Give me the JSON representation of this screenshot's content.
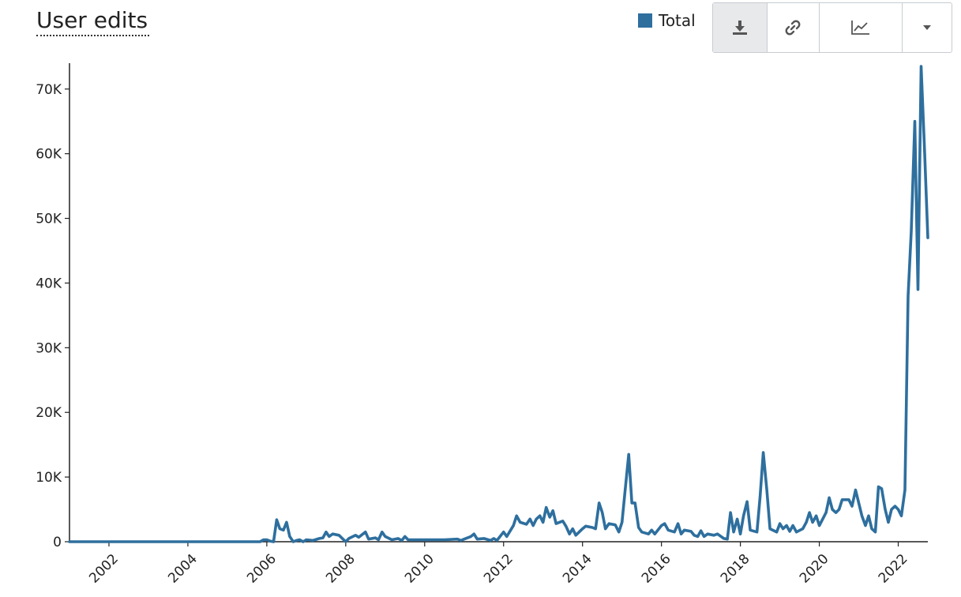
{
  "title": "User edits",
  "legend": {
    "label": "Total",
    "color": "#2e6f9e"
  },
  "toolbar": {
    "buttons": [
      {
        "name": "download",
        "icon": "download-icon"
      },
      {
        "name": "link",
        "icon": "link-icon"
      },
      {
        "name": "chart-type",
        "icon": "line-chart-icon"
      },
      {
        "name": "menu",
        "icon": "caret-down-icon"
      }
    ]
  },
  "chart_data": {
    "type": "line",
    "title": "User edits",
    "xlabel": "",
    "ylabel": "",
    "xlim": [
      2001.0,
      2022.75
    ],
    "ylim": [
      0,
      74000
    ],
    "grid": false,
    "legend_position": "top-right",
    "x_ticks": [
      "2002",
      "2004",
      "2006",
      "2008",
      "2010",
      "2012",
      "2014",
      "2016",
      "2018",
      "2020",
      "2022"
    ],
    "y_ticks": [
      "0",
      "10K",
      "20K",
      "30K",
      "40K",
      "50K",
      "60K",
      "70K"
    ],
    "series": [
      {
        "name": "Total",
        "color": "#2e6f9e",
        "points": [
          [
            2001.0,
            0
          ],
          [
            2005.83,
            0
          ],
          [
            2005.92,
            300
          ],
          [
            2006.0,
            300
          ],
          [
            2006.08,
            100
          ],
          [
            2006.17,
            0
          ],
          [
            2006.25,
            3400
          ],
          [
            2006.33,
            2000
          ],
          [
            2006.42,
            1800
          ],
          [
            2006.5,
            3000
          ],
          [
            2006.58,
            800
          ],
          [
            2006.67,
            0
          ],
          [
            2006.75,
            200
          ],
          [
            2006.83,
            300
          ],
          [
            2006.92,
            0
          ],
          [
            2007.0,
            300
          ],
          [
            2007.17,
            200
          ],
          [
            2007.33,
            500
          ],
          [
            2007.42,
            600
          ],
          [
            2007.5,
            1500
          ],
          [
            2007.58,
            800
          ],
          [
            2007.67,
            1200
          ],
          [
            2007.83,
            1000
          ],
          [
            2008.0,
            0
          ],
          [
            2008.08,
            500
          ],
          [
            2008.25,
            1000
          ],
          [
            2008.33,
            700
          ],
          [
            2008.5,
            1500
          ],
          [
            2008.58,
            400
          ],
          [
            2008.75,
            600
          ],
          [
            2008.83,
            300
          ],
          [
            2008.92,
            1500
          ],
          [
            2009.0,
            800
          ],
          [
            2009.17,
            300
          ],
          [
            2009.33,
            500
          ],
          [
            2009.42,
            200
          ],
          [
            2009.5,
            800
          ],
          [
            2009.58,
            300
          ],
          [
            2010.0,
            300
          ],
          [
            2010.5,
            300
          ],
          [
            2010.83,
            400
          ],
          [
            2010.92,
            200
          ],
          [
            2011.0,
            400
          ],
          [
            2011.17,
            800
          ],
          [
            2011.25,
            1200
          ],
          [
            2011.33,
            400
          ],
          [
            2011.5,
            500
          ],
          [
            2011.67,
            200
          ],
          [
            2011.75,
            500
          ],
          [
            2011.83,
            200
          ],
          [
            2012.0,
            1500
          ],
          [
            2012.08,
            800
          ],
          [
            2012.25,
            2500
          ],
          [
            2012.33,
            4000
          ],
          [
            2012.42,
            3000
          ],
          [
            2012.58,
            2700
          ],
          [
            2012.67,
            3500
          ],
          [
            2012.75,
            2500
          ],
          [
            2012.83,
            3500
          ],
          [
            2012.92,
            4000
          ],
          [
            2013.0,
            3000
          ],
          [
            2013.08,
            5300
          ],
          [
            2013.17,
            3800
          ],
          [
            2013.25,
            4800
          ],
          [
            2013.33,
            2800
          ],
          [
            2013.5,
            3200
          ],
          [
            2013.58,
            2400
          ],
          [
            2013.67,
            1200
          ],
          [
            2013.75,
            2000
          ],
          [
            2013.83,
            1000
          ],
          [
            2014.0,
            2000
          ],
          [
            2014.08,
            2400
          ],
          [
            2014.25,
            2200
          ],
          [
            2014.33,
            2000
          ],
          [
            2014.42,
            6000
          ],
          [
            2014.5,
            4500
          ],
          [
            2014.58,
            2000
          ],
          [
            2014.67,
            2800
          ],
          [
            2014.83,
            2600
          ],
          [
            2014.92,
            1500
          ],
          [
            2015.0,
            3000
          ],
          [
            2015.08,
            8000
          ],
          [
            2015.17,
            13500
          ],
          [
            2015.25,
            6000
          ],
          [
            2015.33,
            6000
          ],
          [
            2015.42,
            2200
          ],
          [
            2015.5,
            1500
          ],
          [
            2015.67,
            1200
          ],
          [
            2015.75,
            1800
          ],
          [
            2015.83,
            1200
          ],
          [
            2016.0,
            2500
          ],
          [
            2016.08,
            2800
          ],
          [
            2016.17,
            1800
          ],
          [
            2016.33,
            1500
          ],
          [
            2016.42,
            2800
          ],
          [
            2016.5,
            1200
          ],
          [
            2016.58,
            1800
          ],
          [
            2016.75,
            1600
          ],
          [
            2016.83,
            1000
          ],
          [
            2016.92,
            800
          ],
          [
            2017.0,
            1700
          ],
          [
            2017.08,
            800
          ],
          [
            2017.17,
            1200
          ],
          [
            2017.33,
            1000
          ],
          [
            2017.42,
            1200
          ],
          [
            2017.58,
            500
          ],
          [
            2017.67,
            400
          ],
          [
            2017.75,
            4500
          ],
          [
            2017.83,
            1500
          ],
          [
            2017.92,
            3500
          ],
          [
            2018.0,
            1200
          ],
          [
            2018.08,
            4000
          ],
          [
            2018.17,
            6200
          ],
          [
            2018.25,
            1800
          ],
          [
            2018.42,
            1500
          ],
          [
            2018.5,
            7000
          ],
          [
            2018.58,
            13800
          ],
          [
            2018.67,
            8000
          ],
          [
            2018.75,
            2000
          ],
          [
            2018.92,
            1500
          ],
          [
            2019.0,
            2800
          ],
          [
            2019.08,
            2000
          ],
          [
            2019.17,
            2500
          ],
          [
            2019.25,
            1600
          ],
          [
            2019.33,
            2500
          ],
          [
            2019.42,
            1500
          ],
          [
            2019.58,
            2000
          ],
          [
            2019.67,
            3000
          ],
          [
            2019.75,
            4500
          ],
          [
            2019.83,
            3000
          ],
          [
            2019.92,
            4000
          ],
          [
            2020.0,
            2500
          ],
          [
            2020.17,
            4500
          ],
          [
            2020.25,
            6800
          ],
          [
            2020.33,
            5000
          ],
          [
            2020.42,
            4500
          ],
          [
            2020.5,
            5000
          ],
          [
            2020.58,
            6500
          ],
          [
            2020.75,
            6500
          ],
          [
            2020.83,
            5500
          ],
          [
            2020.92,
            8000
          ],
          [
            2021.0,
            6000
          ],
          [
            2021.08,
            4000
          ],
          [
            2021.17,
            2500
          ],
          [
            2021.25,
            4000
          ],
          [
            2021.33,
            2000
          ],
          [
            2021.42,
            1500
          ],
          [
            2021.5,
            8500
          ],
          [
            2021.58,
            8200
          ],
          [
            2021.67,
            5000
          ],
          [
            2021.75,
            3000
          ],
          [
            2021.83,
            5000
          ],
          [
            2021.92,
            5500
          ],
          [
            2022.0,
            5000
          ],
          [
            2022.08,
            4000
          ],
          [
            2022.17,
            8000
          ],
          [
            2022.25,
            38000
          ],
          [
            2022.33,
            48000
          ],
          [
            2022.42,
            65000
          ],
          [
            2022.5,
            39000
          ],
          [
            2022.58,
            73500
          ],
          [
            2022.67,
            60000
          ],
          [
            2022.75,
            47000
          ]
        ]
      }
    ]
  }
}
